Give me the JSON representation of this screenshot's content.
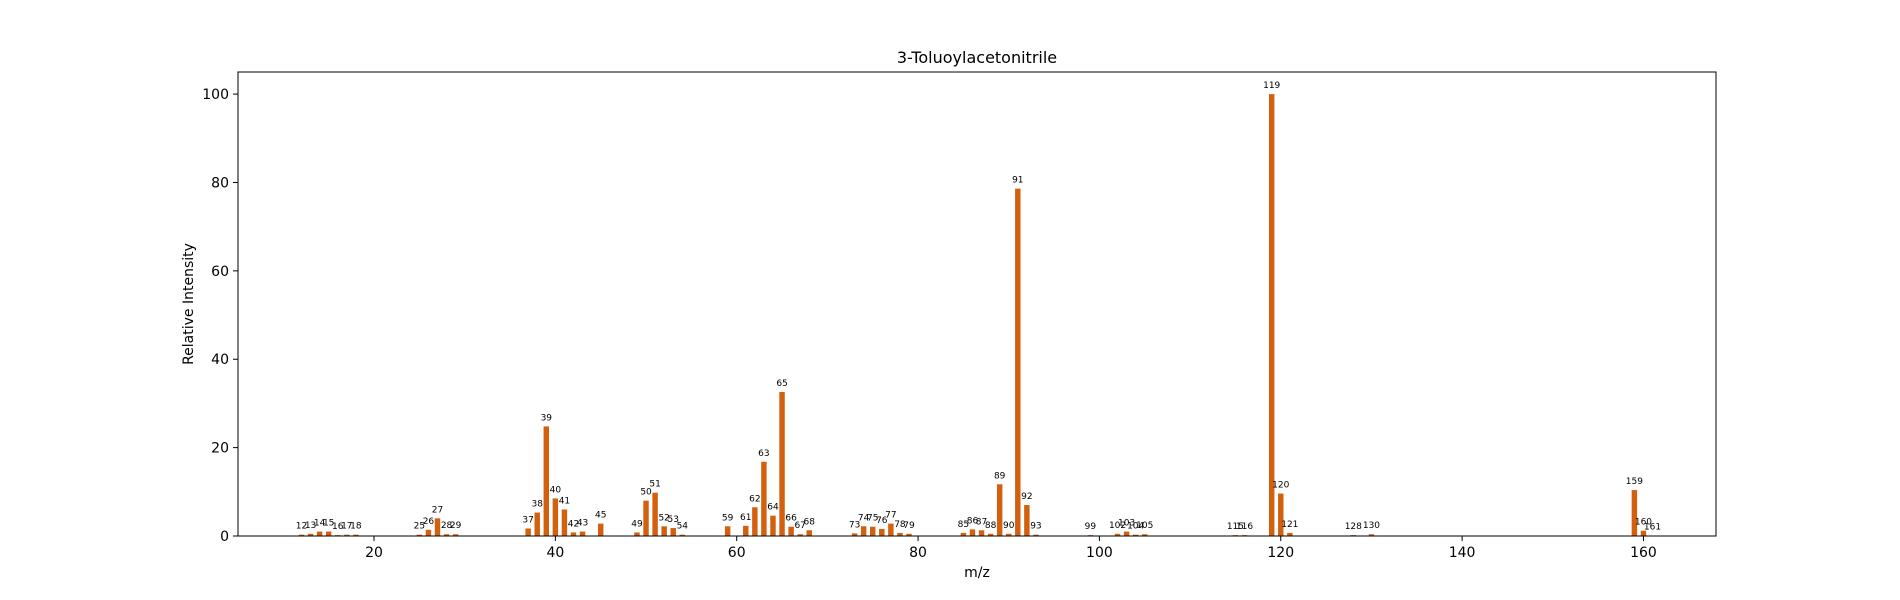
{
  "chart_data": {
    "type": "bar",
    "title": "3-Toluoylacetonitrile",
    "xlabel": "m/z",
    "ylabel": "Relative Intensity",
    "xlim": [
      5,
      168
    ],
    "ylim": [
      0,
      105
    ],
    "xticks": [
      20,
      40,
      60,
      80,
      100,
      120,
      140,
      160
    ],
    "yticks": [
      0,
      20,
      40,
      60,
      80,
      100
    ],
    "grid": false,
    "bar_color": "#d2600f",
    "points": [
      {
        "x": 12,
        "y": 0.3
      },
      {
        "x": 13,
        "y": 0.5
      },
      {
        "x": 14,
        "y": 1.0
      },
      {
        "x": 15,
        "y": 1.0
      },
      {
        "x": 16,
        "y": 0.2
      },
      {
        "x": 17,
        "y": 0.3
      },
      {
        "x": 18,
        "y": 0.3
      },
      {
        "x": 25,
        "y": 0.3
      },
      {
        "x": 26,
        "y": 1.4
      },
      {
        "x": 27,
        "y": 4.0
      },
      {
        "x": 28,
        "y": 0.4
      },
      {
        "x": 29,
        "y": 0.4
      },
      {
        "x": 37,
        "y": 1.7
      },
      {
        "x": 38,
        "y": 5.3
      },
      {
        "x": 39,
        "y": 24.8
      },
      {
        "x": 40,
        "y": 8.5
      },
      {
        "x": 41,
        "y": 6.0
      },
      {
        "x": 42,
        "y": 0.8
      },
      {
        "x": 43,
        "y": 1.0
      },
      {
        "x": 45,
        "y": 2.8
      },
      {
        "x": 49,
        "y": 0.8
      },
      {
        "x": 50,
        "y": 8.0
      },
      {
        "x": 51,
        "y": 9.8
      },
      {
        "x": 52,
        "y": 2.2
      },
      {
        "x": 53,
        "y": 1.8
      },
      {
        "x": 54,
        "y": 0.3
      },
      {
        "x": 59,
        "y": 2.2
      },
      {
        "x": 61,
        "y": 2.3
      },
      {
        "x": 62,
        "y": 6.5
      },
      {
        "x": 63,
        "y": 16.8
      },
      {
        "x": 64,
        "y": 4.6
      },
      {
        "x": 65,
        "y": 32.6
      },
      {
        "x": 66,
        "y": 2.1
      },
      {
        "x": 67,
        "y": 0.4
      },
      {
        "x": 68,
        "y": 1.3
      },
      {
        "x": 73,
        "y": 0.6
      },
      {
        "x": 74,
        "y": 2.2
      },
      {
        "x": 75,
        "y": 2.1
      },
      {
        "x": 76,
        "y": 1.6
      },
      {
        "x": 77,
        "y": 2.8
      },
      {
        "x": 78,
        "y": 0.7
      },
      {
        "x": 79,
        "y": 0.5
      },
      {
        "x": 85,
        "y": 0.7
      },
      {
        "x": 86,
        "y": 1.5
      },
      {
        "x": 87,
        "y": 1.3
      },
      {
        "x": 88,
        "y": 0.5
      },
      {
        "x": 89,
        "y": 11.7
      },
      {
        "x": 90,
        "y": 0.5
      },
      {
        "x": 91,
        "y": 78.6
      },
      {
        "x": 92,
        "y": 7.0
      },
      {
        "x": 93,
        "y": 0.3
      },
      {
        "x": 99,
        "y": 0.2
      },
      {
        "x": 102,
        "y": 0.5
      },
      {
        "x": 103,
        "y": 1.0
      },
      {
        "x": 104,
        "y": 0.3
      },
      {
        "x": 105,
        "y": 0.4
      },
      {
        "x": 115,
        "y": 0.2
      },
      {
        "x": 116,
        "y": 0.2
      },
      {
        "x": 119,
        "y": 100
      },
      {
        "x": 120,
        "y": 9.6
      },
      {
        "x": 121,
        "y": 0.7
      },
      {
        "x": 128,
        "y": 0.2
      },
      {
        "x": 130,
        "y": 0.4
      },
      {
        "x": 159,
        "y": 10.4
      },
      {
        "x": 160,
        "y": 1.2
      },
      {
        "x": 161,
        "y": 0.1
      }
    ]
  }
}
